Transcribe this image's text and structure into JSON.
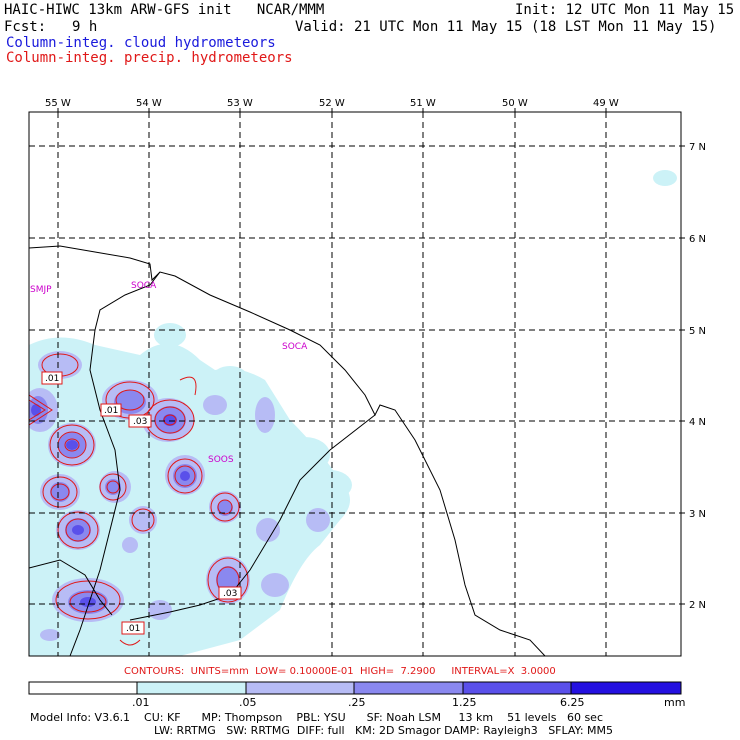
{
  "header": {
    "title": "HAIC-HIWC 13km ARW-GFS init   NCAR/MMM",
    "init": "Init: 12 UTC Mon 11 May 15",
    "fcst_label": "Fcst:",
    "fcst_value": "9 h",
    "valid": "Valid: 21 UTC Mon 11 May 15 (18 LST Mon 11 May 15)",
    "field1": "Column-integ. cloud hydrometeors",
    "field2": "Column-integ. precip. hydrometeors"
  },
  "axes": {
    "lon_labels": [
      "55 W",
      "54 W",
      "53 W",
      "52 W",
      "51 W",
      "50 W",
      "49 W"
    ],
    "lat_labels": [
      "7 N",
      "6 N",
      "5 N",
      "4 N",
      "3 N",
      "2 N"
    ]
  },
  "stations": [
    "SMJP",
    "SOCA",
    "SOCA",
    "SOOS"
  ],
  "contour_labels": [
    ".01",
    ".01",
    ".03",
    ".03",
    ".01"
  ],
  "contours_info": "CONTOURS:  UNITS=mm  LOW= 0.10000E-01  HIGH=  7.2900     INTERVAL=X  3.0000",
  "colorbar": {
    "ticks": [
      ".01",
      ".05",
      ".25",
      "1.25",
      "6.25"
    ],
    "unit": "mm",
    "colors": [
      "#ffffff",
      "#ccf2f7",
      "#b7bcf5",
      "#8a88ef",
      "#5a50ea",
      "#2410e0"
    ]
  },
  "model_info": {
    "line1": "Model Info: V3.6.1    CU: KF      MP: Thompson    PBL: YSU      SF: Noah LSM     13 km    51 levels   60 sec",
    "line2": "LW: RRTMG   SW: RRTMG  DIFF: full   KM: 2D Smagor DAMP: Rayleigh3   SFLAY: MM5"
  }
}
